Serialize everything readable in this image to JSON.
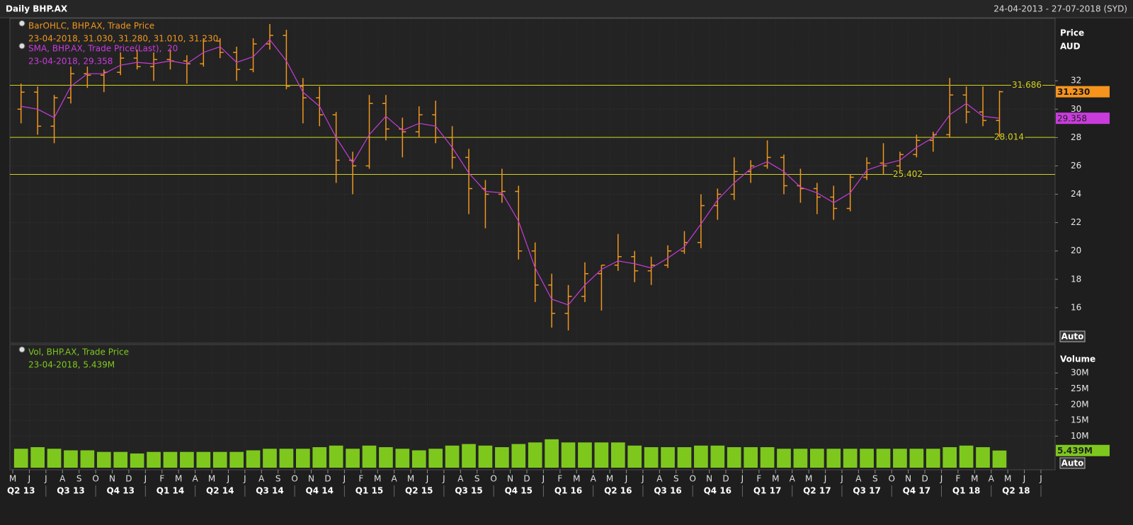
{
  "header": {
    "title": "Daily BHP.AX",
    "range": "24-04-2013 - 27-07-2018 (SYD)"
  },
  "x_axis": {
    "months": [
      "M",
      "J",
      "J",
      "A",
      "S",
      "O",
      "N",
      "D",
      "J",
      "F",
      "M",
      "A",
      "M",
      "J",
      "J",
      "A",
      "S",
      "O",
      "N",
      "D",
      "J",
      "F",
      "M",
      "A",
      "M",
      "J",
      "J",
      "A",
      "S",
      "O",
      "N",
      "D",
      "J",
      "F",
      "M",
      "A",
      "M",
      "J",
      "J",
      "A",
      "S",
      "O",
      "N",
      "D",
      "J",
      "F",
      "M",
      "A",
      "M",
      "J",
      "J",
      "A",
      "S",
      "O",
      "N",
      "D",
      "J",
      "F",
      "M",
      "A",
      "M",
      "J",
      "J"
    ],
    "quarters": [
      "Q2 13",
      "Q3 13",
      "Q4 13",
      "Q1 14",
      "Q2 14",
      "Q3 14",
      "Q4 14",
      "Q1 15",
      "Q2 15",
      "Q3 15",
      "Q4 15",
      "Q1 16",
      "Q2 16",
      "Q3 16",
      "Q4 16",
      "Q1 17",
      "Q2 17",
      "Q3 17",
      "Q4 17",
      "Q1 18",
      "Q2 18"
    ]
  },
  "chart_data": [
    {
      "type": "ohlc",
      "y_title": "Price",
      "y_unit": "AUD",
      "ylim": [
        13.5,
        36.4
      ],
      "yticks": [
        16,
        18,
        20,
        22,
        24,
        26,
        28,
        30,
        32
      ],
      "grid": true,
      "scale_button": "Auto",
      "series": [
        {
          "name": "BarOHLC, BHP.AX, Trade Price",
          "legend_values": "23-04-2018, 31.030, 31.280, 31.010, 31.230",
          "color": "#f0961e",
          "open": [
            30.0,
            31.2,
            28.8,
            30.8,
            32.5,
            32.4,
            32.6,
            33.6,
            33.0,
            33.5,
            33.4,
            33.2,
            34.8,
            34.0,
            32.8,
            34.6,
            35.2,
            31.6,
            30.8,
            29.6,
            26.4,
            26.0,
            30.4,
            28.6,
            28.4,
            29.6,
            28.0,
            26.6,
            24.4,
            24.0,
            24.2,
            20.0,
            17.6,
            15.6,
            16.8,
            18.4,
            19.0,
            19.6,
            18.6,
            19.0,
            20.0,
            20.6,
            23.2,
            24.0,
            25.6,
            26.0,
            26.6,
            24.6,
            24.4,
            23.8,
            23.0,
            25.2,
            26.2,
            26.0,
            26.8,
            27.8,
            28.2,
            31.0,
            29.8,
            29.2
          ],
          "high": [
            31.8,
            31.6,
            31.0,
            33.0,
            33.0,
            32.8,
            34.0,
            34.2,
            34.0,
            34.2,
            33.8,
            35.0,
            35.0,
            34.4,
            35.0,
            36.0,
            35.6,
            32.2,
            31.6,
            29.8,
            27.0,
            31.0,
            31.0,
            29.4,
            30.2,
            30.6,
            28.8,
            27.2,
            25.0,
            25.8,
            24.6,
            20.6,
            18.4,
            17.6,
            19.2,
            19.0,
            21.2,
            20.0,
            19.6,
            20.4,
            21.4,
            24.0,
            24.4,
            26.6,
            26.4,
            27.8,
            26.8,
            25.8,
            24.8,
            24.6,
            25.4,
            26.6,
            27.6,
            27.0,
            28.2,
            28.4,
            32.2,
            31.6,
            31.6,
            31.3
          ],
          "low": [
            29.0,
            28.2,
            27.6,
            30.4,
            31.5,
            31.2,
            32.4,
            32.8,
            32.0,
            32.8,
            31.8,
            33.0,
            33.6,
            32.0,
            32.6,
            34.2,
            31.4,
            29.0,
            28.8,
            24.8,
            24.0,
            25.8,
            27.8,
            26.6,
            28.0,
            27.6,
            25.8,
            22.6,
            21.6,
            23.4,
            19.4,
            16.4,
            14.6,
            14.4,
            16.4,
            15.8,
            18.6,
            17.8,
            17.6,
            18.8,
            19.8,
            20.2,
            22.2,
            23.6,
            24.8,
            25.8,
            24.0,
            23.4,
            22.6,
            22.2,
            22.8,
            25.0,
            25.4,
            25.6,
            26.6,
            27.0,
            28.0,
            29.0,
            28.8,
            28.0
          ],
          "close": [
            31.2,
            28.8,
            30.8,
            32.5,
            32.4,
            32.6,
            33.6,
            33.0,
            33.5,
            33.4,
            33.2,
            34.8,
            34.0,
            32.8,
            34.6,
            35.2,
            31.6,
            30.8,
            29.6,
            26.4,
            26.0,
            30.4,
            28.6,
            28.4,
            29.6,
            28.0,
            26.6,
            24.4,
            24.0,
            24.2,
            20.0,
            17.6,
            15.6,
            16.8,
            18.4,
            19.0,
            19.6,
            18.6,
            19.0,
            20.0,
            20.6,
            23.2,
            24.0,
            25.6,
            26.0,
            26.6,
            24.6,
            24.4,
            23.8,
            23.0,
            25.2,
            26.2,
            26.0,
            26.8,
            27.8,
            28.2,
            31.0,
            29.8,
            29.2,
            31.23
          ]
        },
        {
          "name": "SMA, BHP.AX, Trade Price(Last),  20",
          "legend_values": "23-04-2018, 29.358",
          "color": "#c83cdc",
          "values": [
            30.2,
            30.0,
            29.4,
            31.6,
            32.5,
            32.5,
            33.1,
            33.3,
            33.2,
            33.4,
            33.2,
            34.0,
            34.4,
            33.3,
            33.7,
            34.9,
            33.4,
            31.2,
            30.2,
            28.0,
            26.2,
            28.2,
            29.5,
            28.5,
            29.0,
            28.8,
            27.3,
            25.5,
            24.2,
            24.1,
            22.1,
            18.8,
            16.6,
            16.2,
            17.6,
            18.7,
            19.3,
            19.1,
            18.8,
            19.5,
            20.3,
            21.9,
            23.6,
            24.8,
            25.8,
            26.3,
            25.6,
            24.5,
            24.1,
            23.4,
            24.1,
            25.7,
            26.1,
            26.4,
            27.3,
            28.0,
            29.6,
            30.4,
            29.5,
            29.358
          ]
        }
      ],
      "levels": [
        {
          "value": 31.686,
          "color": "#d2d21e"
        },
        {
          "value": 28.014,
          "color": "#d2d21e"
        },
        {
          "value": 25.402,
          "color": "#d2d21e"
        }
      ],
      "last_values": [
        {
          "value": 31.23,
          "label": "31.230",
          "color": "#f7941d"
        },
        {
          "value": 29.358,
          "label": "29.358",
          "color": "#c83cdc"
        }
      ]
    },
    {
      "type": "bar",
      "y_title": "Volume",
      "ylim": [
        0,
        39
      ],
      "yticks": [
        {
          "value": 10,
          "label": "10M"
        },
        {
          "value": 15,
          "label": "15M"
        },
        {
          "value": 20,
          "label": "20M"
        },
        {
          "value": 25,
          "label": "25M"
        },
        {
          "value": 30,
          "label": "30M"
        }
      ],
      "grid": true,
      "scale_button": "Auto",
      "series": [
        {
          "name": "Vol, BHP.AX, Trade Price",
          "legend_values": "23-04-2018, 5.439M",
          "color": "#7ec81e",
          "values": [
            6,
            6.5,
            6,
            5.5,
            5.5,
            5,
            5,
            4.5,
            5,
            5,
            5,
            5,
            5,
            5,
            5.5,
            6,
            6,
            6,
            6.5,
            7,
            6,
            7,
            6.5,
            6,
            5.5,
            6,
            7,
            7.5,
            7,
            6.5,
            7.5,
            8,
            9,
            8,
            8,
            8,
            8,
            7,
            6.5,
            6.5,
            6.5,
            7,
            7,
            6.5,
            6.5,
            6.5,
            6,
            6,
            6,
            6,
            6,
            6,
            6,
            6,
            6,
            6,
            6.5,
            7,
            6.5,
            5.439
          ]
        }
      ],
      "last_values": [
        {
          "value": 5.439,
          "label": "5.439M",
          "color": "#7ec81e"
        }
      ]
    }
  ]
}
